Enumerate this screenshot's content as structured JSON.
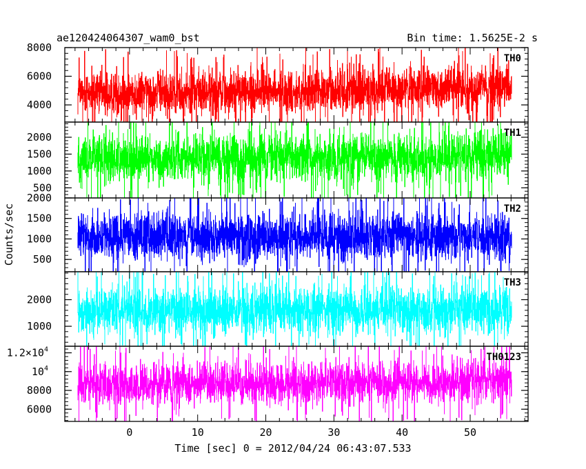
{
  "header": {
    "left_title": "ae120424064307_wam0_bst",
    "right_title": "Bin time: 1.5625E-2 s"
  },
  "chart_data": {
    "type": "line",
    "title": "ae120424064307_wam0_bst",
    "subtitle": "Bin time: 1.5625E-2 s",
    "xlabel": "Time [sec] 0 = 2012/04/24 06:43:07.533",
    "ylabel": "Counts/sec",
    "xlim": [
      -9.5,
      58.5
    ],
    "x_ticks": [
      {
        "value": 0,
        "label": "0"
      },
      {
        "value": 10,
        "label": "10"
      },
      {
        "value": 20,
        "label": "20"
      },
      {
        "value": 30,
        "label": "30"
      },
      {
        "value": 40,
        "label": "40"
      },
      {
        "value": 50,
        "label": "50"
      }
    ],
    "x_data_range": [
      -7.5,
      56
    ],
    "grid": false,
    "legend": "none",
    "panels": [
      {
        "name": "TH0",
        "color": "#ff0000",
        "ylim": [
          2800,
          8000
        ],
        "y_ticks": [
          {
            "value": 4000,
            "label": "4000"
          },
          {
            "value": 6000,
            "label": "6000"
          },
          {
            "value": 8000,
            "label": "8000"
          }
        ],
        "series": {
          "start_mean": 4800,
          "end_mean": 5200,
          "low": 3050,
          "high": 7600,
          "spike_max": 8000
        }
      },
      {
        "name": "TH1",
        "color": "#00ff00",
        "ylim": [
          200,
          2450
        ],
        "y_ticks": [
          {
            "value": 500,
            "label": "500"
          },
          {
            "value": 1000,
            "label": "1000"
          },
          {
            "value": 1500,
            "label": "1500"
          },
          {
            "value": 2000,
            "label": "2000"
          }
        ],
        "series": {
          "start_mean": 1350,
          "end_mean": 1450,
          "low": 290,
          "high": 2350,
          "spike_max": 2450
        }
      },
      {
        "name": "TH2",
        "color": "#0000ff",
        "ylim": [
          200,
          2000
        ],
        "y_ticks": [
          {
            "value": 500,
            "label": "500"
          },
          {
            "value": 1000,
            "label": "1000"
          },
          {
            "value": 1500,
            "label": "1500"
          },
          {
            "value": 2000,
            "label": "2000"
          }
        ],
        "series": {
          "start_mean": 1050,
          "end_mean": 1050,
          "low": 270,
          "high": 1900,
          "spike_max": 2000
        }
      },
      {
        "name": "TH3",
        "color": "#00ffff",
        "ylim": [
          250,
          3050
        ],
        "y_ticks": [
          {
            "value": 1000,
            "label": "1000"
          },
          {
            "value": 2000,
            "label": "2000"
          }
        ],
        "series": {
          "start_mean": 1600,
          "end_mean": 1600,
          "low": 350,
          "high": 2850,
          "spike_max": 3050
        }
      },
      {
        "name": "TH0123",
        "color": "#ff00ff",
        "ylim": [
          4700,
          12700
        ],
        "y_ticks": [
          {
            "value": 6000,
            "label": "6000"
          },
          {
            "value": 8000,
            "label": "8000"
          },
          {
            "value": 10000,
            "label": "10",
            "exp": "4"
          },
          {
            "value": 12000,
            "label": "1.2×10",
            "exp": "4"
          }
        ],
        "series": {
          "start_mean": 8500,
          "end_mean": 9000,
          "low": 5600,
          "high": 12000,
          "spike_max": 12700
        }
      }
    ]
  }
}
